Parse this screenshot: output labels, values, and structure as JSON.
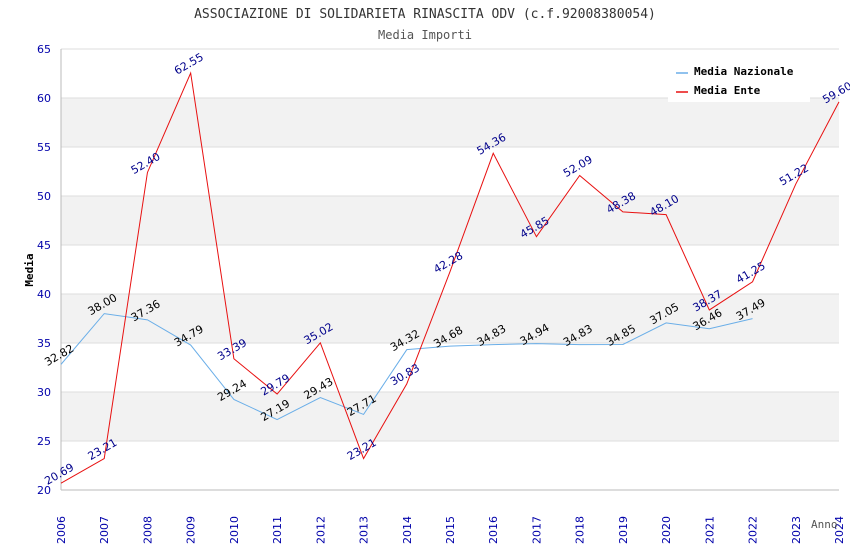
{
  "chart_data": {
    "type": "line",
    "title": "ASSOCIAZIONE DI SOLIDARIETA RINASCITA ODV (c.f.92008380054)",
    "subtitle": "Media Importi",
    "xlabel": "Anno",
    "ylabel": "Media",
    "ylim": [
      20,
      65
    ],
    "yticks": [
      20,
      25,
      30,
      35,
      40,
      45,
      50,
      55,
      60,
      65
    ],
    "categories": [
      "2006",
      "2007",
      "2008",
      "2009",
      "2010",
      "2011",
      "2012",
      "2013",
      "2014",
      "2015",
      "2016",
      "2017",
      "2018",
      "2019",
      "2020",
      "2021",
      "2022",
      "2023",
      "2024"
    ],
    "series": [
      {
        "name": "Media Nazionale",
        "color": "#6aaee8",
        "values": [
          32.82,
          38.0,
          37.36,
          34.79,
          29.24,
          27.19,
          29.43,
          27.71,
          34.32,
          34.68,
          34.83,
          34.94,
          34.83,
          34.85,
          37.05,
          36.46,
          37.49,
          null,
          null
        ],
        "labels": [
          "32.82",
          "38.00",
          "37.36",
          "34.79",
          "29.24",
          "27.19",
          "29.43",
          "27.71",
          "34.32",
          "34.68",
          "34.83",
          "34.94",
          "34.83",
          "34.85",
          "37.05",
          "36.46",
          "37.49",
          null,
          null
        ]
      },
      {
        "name": "Media Ente",
        "color": "#e81010",
        "values": [
          20.69,
          23.21,
          52.4,
          62.55,
          33.39,
          29.79,
          35.02,
          23.21,
          30.83,
          42.28,
          54.36,
          45.85,
          52.09,
          48.38,
          48.1,
          38.37,
          41.25,
          51.22,
          59.6
        ],
        "labels": [
          "20.69",
          "23.21",
          "52.40",
          "62.55",
          "33.39",
          "29.79",
          "35.02",
          "23.21",
          "30.83",
          "42.28",
          "54.36",
          "45.85",
          "52.09",
          "48.38",
          "48.10",
          "38.37",
          "41.25",
          "51.22",
          "59.60"
        ]
      }
    ],
    "grid": true,
    "legend": "top-right"
  },
  "colors": {
    "band": "#f2f2f2",
    "axis": "#bbbbbb",
    "tick_text": "#0000aa"
  }
}
